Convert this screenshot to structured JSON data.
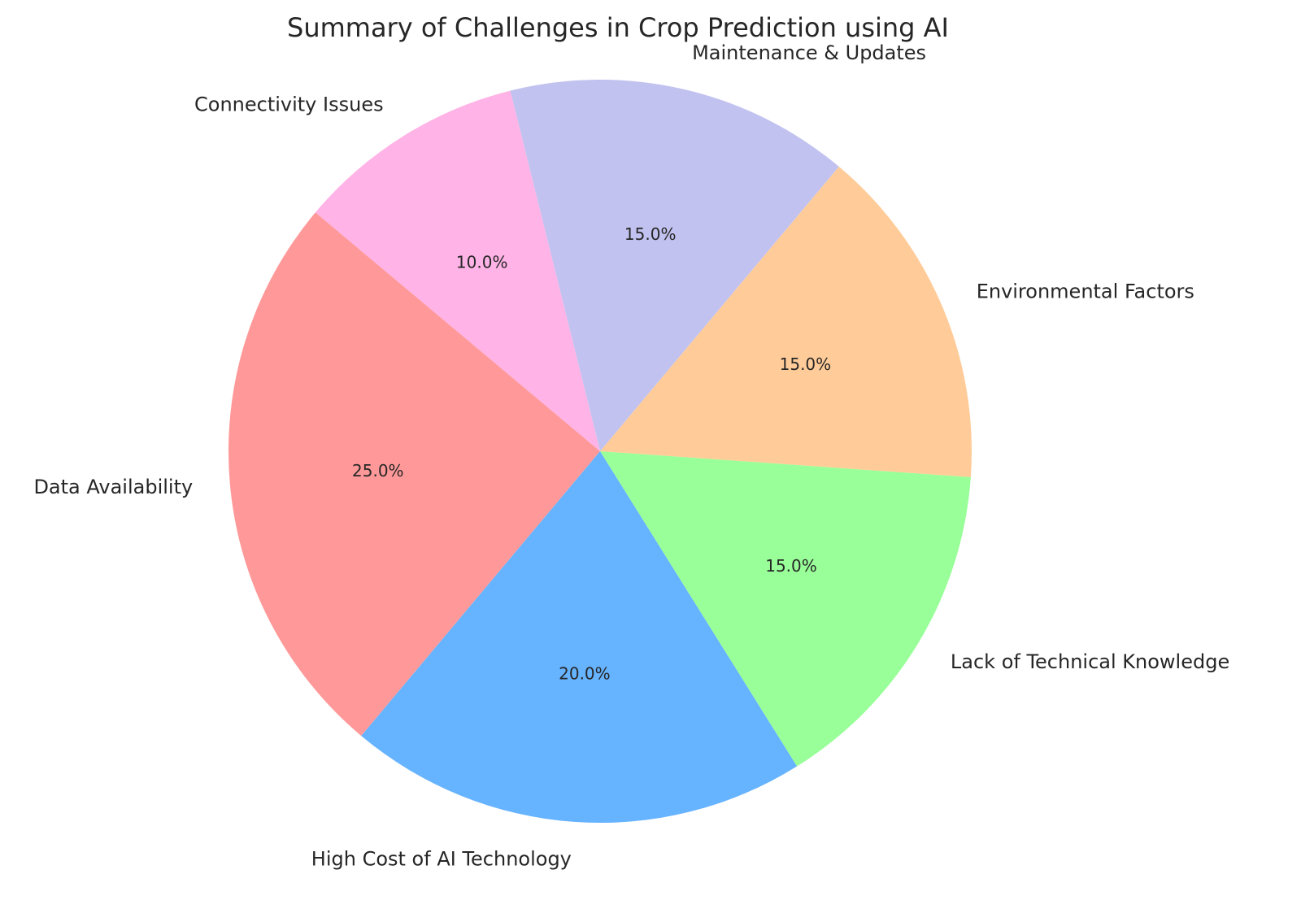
{
  "chart_data": {
    "type": "pie",
    "title": "Summary of Challenges in Crop Prediction using AI",
    "categories": [
      "Data Availability",
      "High Cost of AI Technology",
      "Lack of Technical Knowledge",
      "Environmental Factors",
      "Maintenance & Updates",
      "Connectivity Issues"
    ],
    "values": [
      25,
      20,
      15,
      15,
      15,
      10
    ],
    "percent_labels": [
      "25.0%",
      "20.0%",
      "15.0%",
      "15.0%",
      "15.0%",
      "10.0%"
    ],
    "colors": [
      "#ff9999",
      "#66b3ff",
      "#99ff99",
      "#ffcc99",
      "#c2c2f0",
      "#ffb3e6"
    ],
    "start_angle": 140,
    "direction": "counterclockwise",
    "legend": "none"
  }
}
